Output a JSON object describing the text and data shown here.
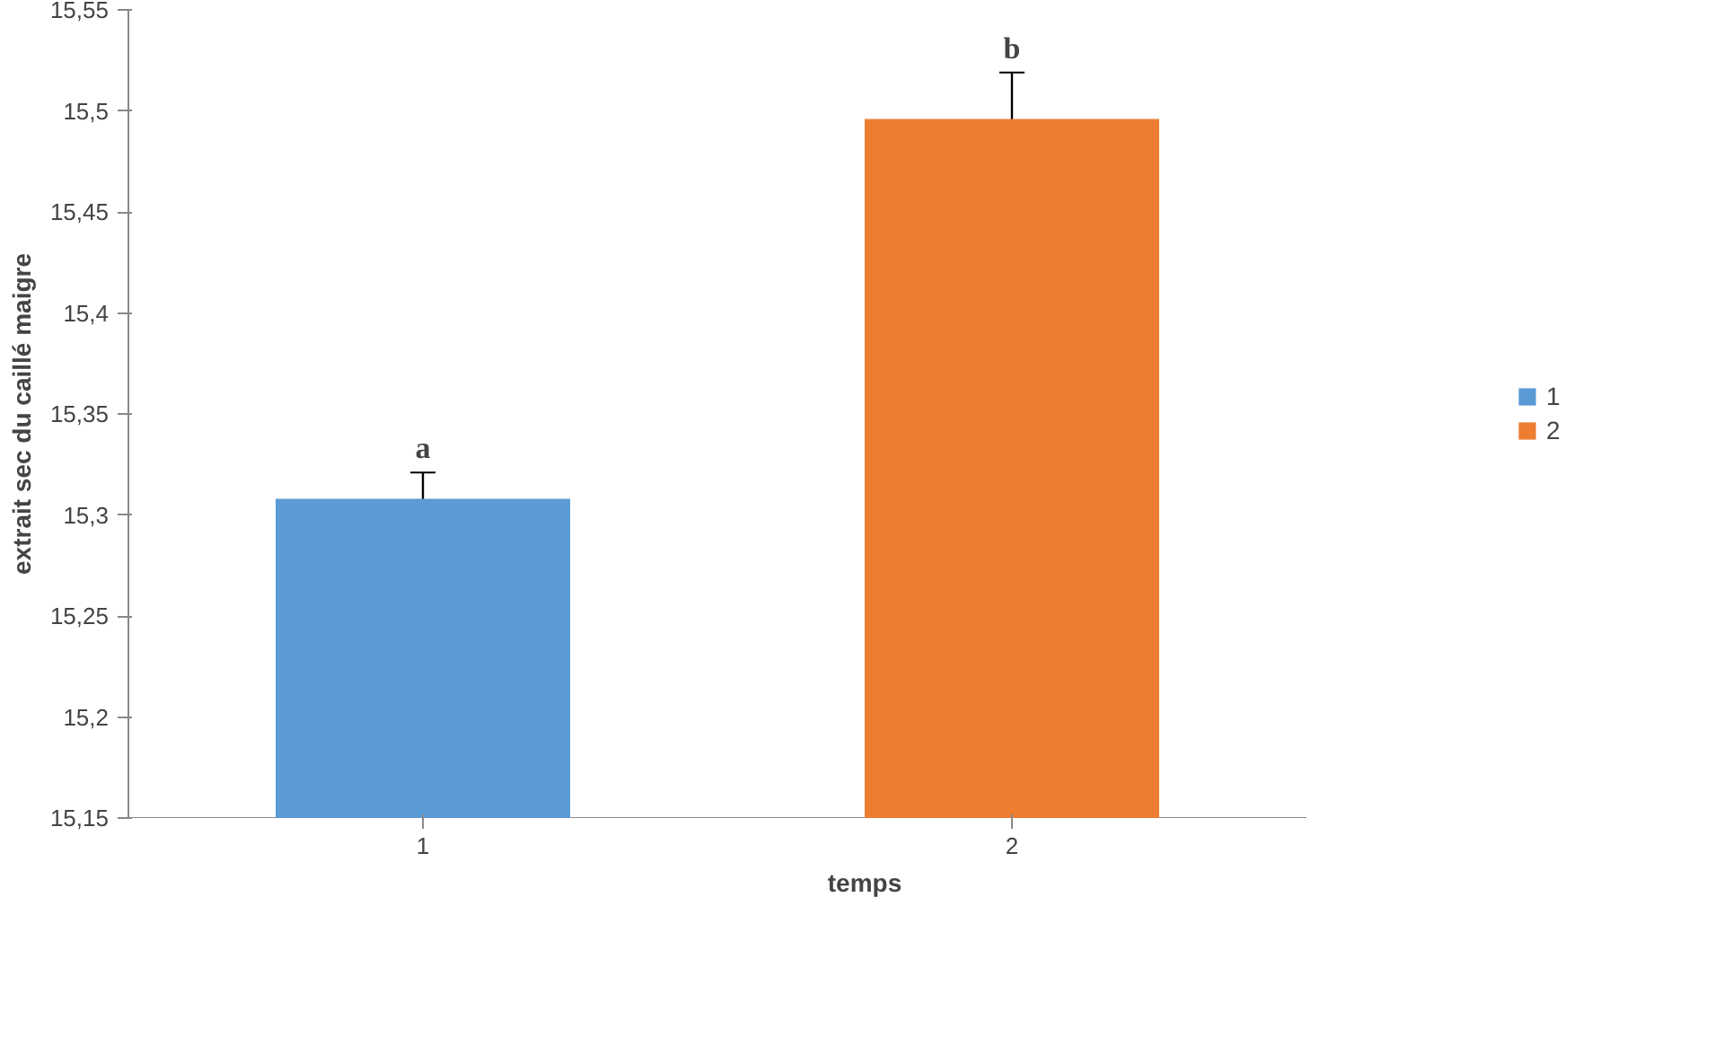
{
  "chart_data": {
    "type": "bar",
    "xlabel": "temps",
    "ylabel": "extrait sec du caillé maigre",
    "categories": [
      "1",
      "2"
    ],
    "series": [
      {
        "name": "1",
        "color": "#5b9bd5",
        "values": [
          15.308,
          null
        ],
        "errors": [
          0.013,
          null
        ]
      },
      {
        "name": "2",
        "color": "#ed7d31",
        "values": [
          null,
          15.496
        ],
        "errors": [
          null,
          0.023
        ]
      }
    ],
    "ylim": [
      15.15,
      15.55
    ],
    "yticks": [
      {
        "value": 15.15,
        "label": "15,15"
      },
      {
        "value": 15.2,
        "label": "15,2"
      },
      {
        "value": 15.25,
        "label": "15,25"
      },
      {
        "value": 15.3,
        "label": "15,3"
      },
      {
        "value": 15.35,
        "label": "15,35"
      },
      {
        "value": 15.4,
        "label": "15,4"
      },
      {
        "value": 15.45,
        "label": "15,45"
      },
      {
        "value": 15.5,
        "label": "15,5"
      },
      {
        "value": 15.55,
        "label": "15,55"
      }
    ],
    "annotations": [
      "a",
      "b"
    ],
    "grid": false,
    "legend": "right"
  }
}
